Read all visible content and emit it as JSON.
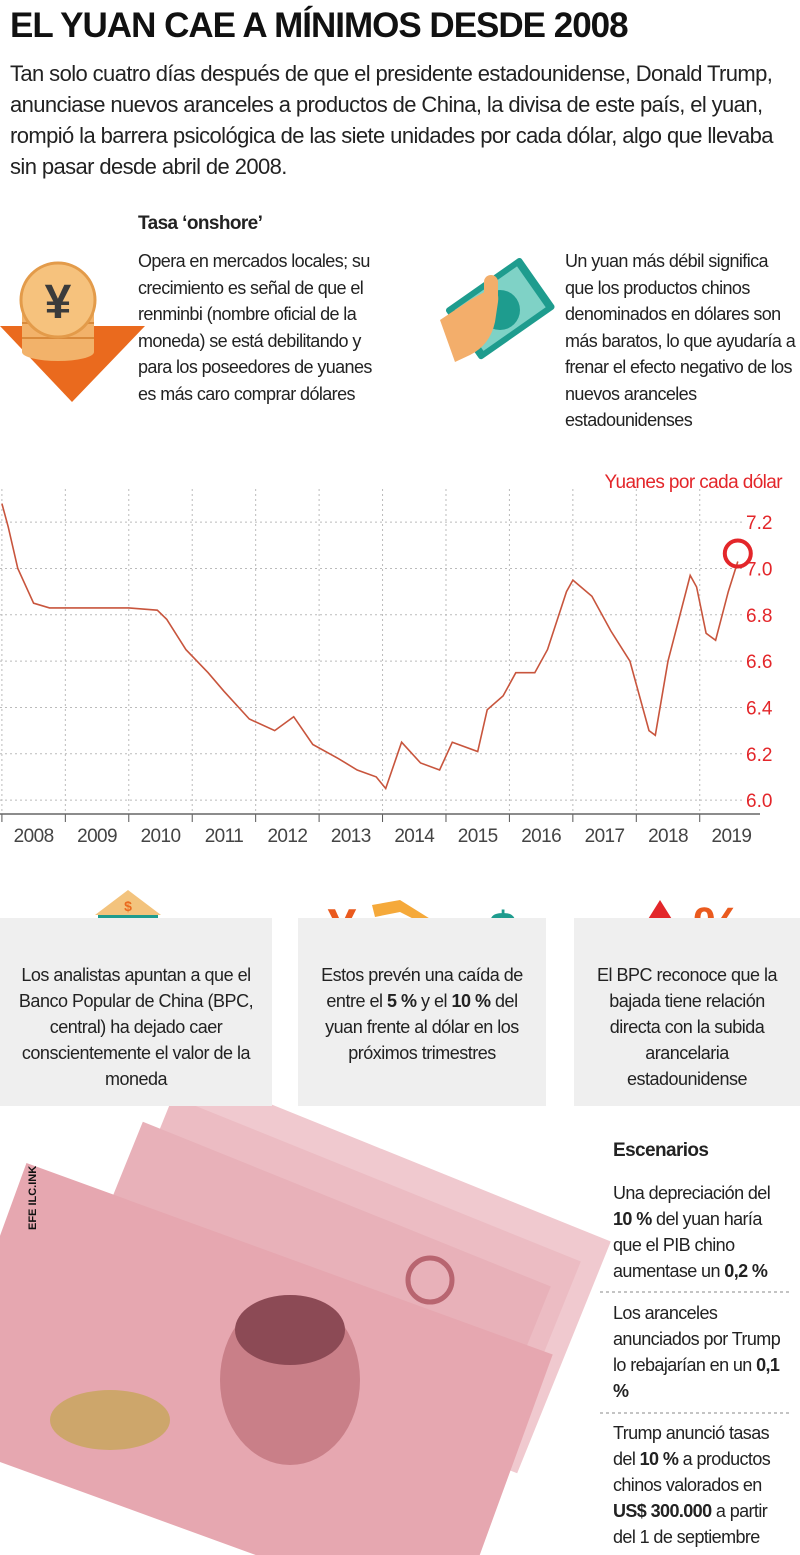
{
  "header": {
    "title": "EL YUAN CAE A MÍNIMOS DESDE 2008",
    "intro": "Tan solo cuatro días después de que el presidente estadounidense, Donald Trump, anunciase nuevos aranceles a productos de China, la divisa de este país, el yuan, rompió la barrera psicológica de las siete unidades por cada dólar, algo que llevaba sin pasar desde abril de 2008."
  },
  "icons": {
    "yen": "¥",
    "dollar": "$",
    "percent": "%"
  },
  "onshore": {
    "title": "Tasa ‘onshore’",
    "text": "Opera en mercados locales; su crecimiento es señal de que el renminbi (nombre oficial de la moneda) se está debilitando y para los poseedores de yuanes es más caro comprar dólares"
  },
  "weak": {
    "text": "Un yuan más débil significa que los productos chinos denominados en dólares son más baratos, lo que ayudaría a frenar el efecto negativo de los nuevos aranceles estadounidenses"
  },
  "chart_data": {
    "type": "line",
    "y_label": "Yuanes por cada dólar",
    "x": [
      2008.0,
      2008.1,
      2008.25,
      2008.5,
      2008.75,
      2009.0,
      2009.5,
      2010.0,
      2010.45,
      2010.6,
      2010.9,
      2011.25,
      2011.5,
      2011.9,
      2012.3,
      2012.6,
      2012.9,
      2013.3,
      2013.6,
      2013.9,
      2014.05,
      2014.3,
      2014.6,
      2014.9,
      2015.1,
      2015.5,
      2015.65,
      2015.9,
      2016.1,
      2016.4,
      2016.6,
      2016.9,
      2017.0,
      2017.3,
      2017.6,
      2017.9,
      2018.2,
      2018.3,
      2018.5,
      2018.85,
      2018.95,
      2019.1,
      2019.25,
      2019.45,
      2019.6
    ],
    "series": [
      {
        "name": "Yuanes por cada dólar",
        "color": "#c8553d",
        "values": [
          7.28,
          7.18,
          7.0,
          6.85,
          6.83,
          6.83,
          6.83,
          6.83,
          6.82,
          6.78,
          6.65,
          6.55,
          6.47,
          6.35,
          6.3,
          6.36,
          6.24,
          6.18,
          6.13,
          6.1,
          6.05,
          6.25,
          6.16,
          6.13,
          6.25,
          6.21,
          6.39,
          6.45,
          6.55,
          6.55,
          6.65,
          6.9,
          6.95,
          6.88,
          6.73,
          6.6,
          6.3,
          6.28,
          6.6,
          6.97,
          6.92,
          6.72,
          6.69,
          6.9,
          7.03
        ]
      }
    ],
    "xlim": [
      2007.97,
      2019.95
    ],
    "xticks": [
      2008,
      2009,
      2010,
      2011,
      2012,
      2013,
      2014,
      2015,
      2016,
      2017,
      2018,
      2019
    ],
    "ylim": [
      5.94,
      7.3
    ],
    "yticks": [
      {
        "value": 6.0,
        "label": "6.0"
      },
      6.2,
      6.4,
      6.6,
      6.8,
      {
        "value": 7.0,
        "label": "7.0"
      },
      7.2
    ],
    "grid": true,
    "axis_color": "#e3262a"
  },
  "boxes": [
    {
      "parts": [
        "Los analistas apuntan a que el Banco Popular de China (BPC, central) ha dejado caer conscientemente el valor de la moneda"
      ]
    },
    {
      "parts": [
        "Estos prevén una caída de entre el ",
        "5 %",
        " y el ",
        "10 %",
        " del yuan frente al dólar en los próximos trimestres"
      ]
    },
    {
      "parts": [
        "El BPC reconoce que la bajada tiene relación directa con la subida arancelaria estadounidense"
      ]
    }
  ],
  "scenarios": {
    "title": "Escenarios",
    "items": [
      {
        "parts": [
          "Una depreciación del ",
          "10 %",
          " del yuan haría que el PIB chino aumentase un ",
          "0,2 %"
        ]
      },
      {
        "parts": [
          "Los aranceles anunciados por Trump lo rebajarían en un ",
          "0,1 %"
        ]
      },
      {
        "parts": [
          "Trump anunció tasas del ",
          "10 %",
          " a productos chinos valorados en ",
          "US$ 300.000",
          " a partir del 1 de septiembre"
        ]
      }
    ]
  },
  "credit": "EFE ILC.INK"
}
